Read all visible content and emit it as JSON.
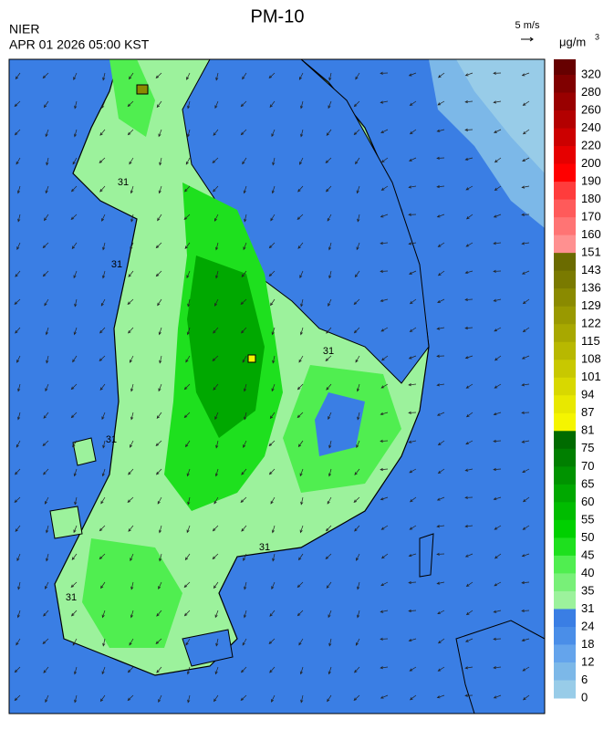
{
  "header": {
    "title": "PM-10",
    "agency": "NIER",
    "timestamp": "APR 01 2026 05:00 KST"
  },
  "wind_scale": {
    "label": "5 m/s"
  },
  "unit": {
    "base": "μg/m",
    "sup": "3"
  },
  "contour_label": "31",
  "colorbar": {
    "levels": [
      320,
      280,
      260,
      240,
      220,
      200,
      190,
      180,
      170,
      160,
      151,
      143,
      136,
      129,
      122,
      115,
      108,
      101,
      94,
      87,
      81,
      75,
      70,
      65,
      60,
      55,
      50,
      45,
      40,
      35,
      31,
      24,
      18,
      12,
      6,
      0
    ],
    "colors": [
      "#660000",
      "#800000",
      "#990000",
      "#b30000",
      "#cc0000",
      "#e60000",
      "#ff0000",
      "#ff3c3c",
      "#ff5a5a",
      "#ff7474",
      "#ff9090",
      "#6b6b00",
      "#7a7a00",
      "#8a8a00",
      "#999900",
      "#a8a800",
      "#b8b800",
      "#c8c800",
      "#d8d800",
      "#e8e800",
      "#f5f500",
      "#006b00",
      "#007f00",
      "#009300",
      "#00a800",
      "#00bc00",
      "#00d000",
      "#1ee01e",
      "#50ee50",
      "#78f078",
      "#9cf29c",
      "#3a7ee4",
      "#4a8ee8",
      "#64a4ec",
      "#7cb8e8",
      "#98cce8"
    ]
  }
}
